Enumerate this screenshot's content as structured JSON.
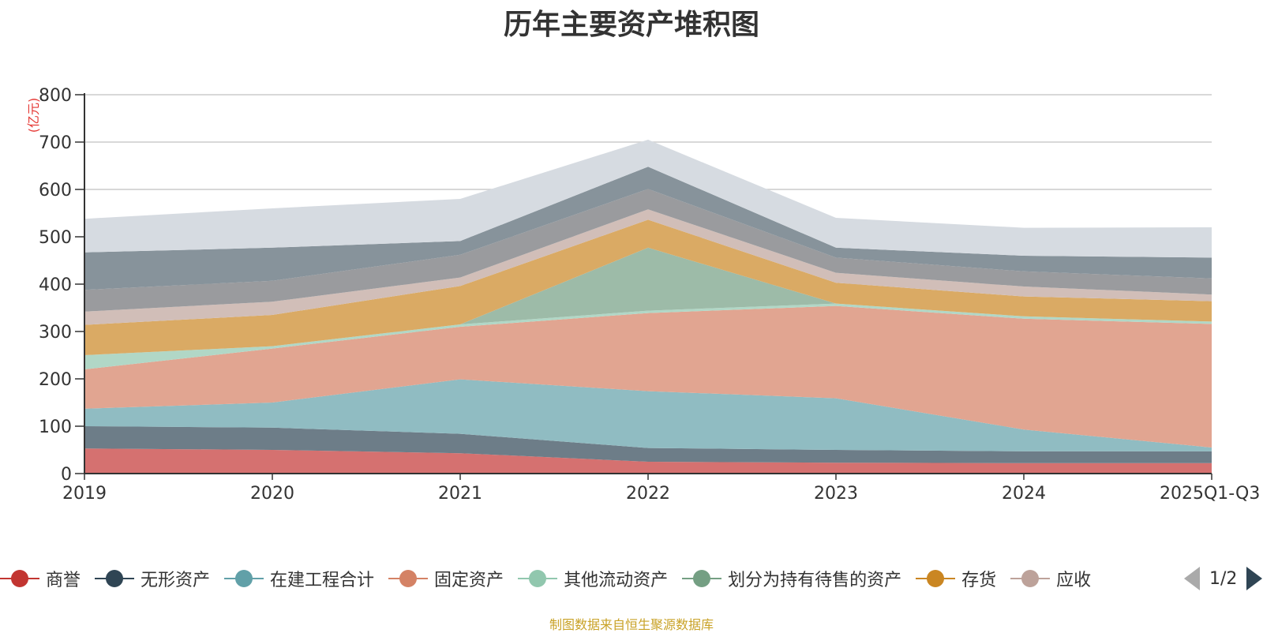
{
  "title": "历年主要资产堆积图",
  "unit_label": "(亿元)",
  "source_note": "制图数据来自恒生聚源数据库",
  "legend_pager": {
    "text": "1/2"
  },
  "chart_data": {
    "type": "area",
    "stacked": true,
    "title": "历年主要资产堆积图",
    "ylabel": "(亿元)",
    "ylim": [
      0,
      800
    ],
    "yticks": [
      0,
      100,
      200,
      300,
      400,
      500,
      600,
      700,
      800
    ],
    "grid": true,
    "categories": [
      "2019",
      "2020",
      "2021",
      "2022",
      "2023",
      "2024",
      "2025Q1-Q3"
    ],
    "series": [
      {
        "name": "商誉",
        "color": "#c23531",
        "fill": "#d57170",
        "values": [
          53,
          50,
          43,
          25,
          23,
          22,
          22
        ]
      },
      {
        "name": "无形资产",
        "color": "#2f4554",
        "fill": "#6d7d88",
        "values": [
          47,
          47,
          41,
          29,
          27,
          25,
          25
        ]
      },
      {
        "name": "在建工程合计",
        "color": "#61a0a8",
        "fill": "#90bcc2",
        "values": [
          37,
          53,
          115,
          120,
          109,
          46,
          8
        ]
      },
      {
        "name": "固定资产",
        "color": "#d48265",
        "fill": "#e1a591",
        "values": [
          83,
          114,
          111,
          165,
          195,
          234,
          261
        ]
      },
      {
        "name": "其他流动资产",
        "color": "#91c7ae",
        "fill": "#b1d7c6",
        "values": [
          30,
          5,
          5,
          5,
          5,
          5,
          5
        ]
      },
      {
        "name": "划分为持有待售的资产",
        "color": "#749f83",
        "fill": "#9dbba8",
        "values": [
          0,
          0,
          0,
          133,
          0,
          0,
          0
        ]
      },
      {
        "name": "存货",
        "color": "#ca8622",
        "fill": "#daaa64",
        "values": [
          64,
          66,
          81,
          59,
          44,
          42,
          43
        ]
      },
      {
        "name": "应收",
        "color": "#bda29a",
        "fill": "#d1beb8",
        "values": [
          28,
          28,
          18,
          22,
          21,
          21,
          14
        ]
      },
      {
        "name": "",
        "color": "#6e7074",
        "fill": "#9a9b9e",
        "values": [
          46,
          44,
          48,
          43,
          32,
          32,
          34
        ]
      },
      {
        "name": "",
        "color": "#546570",
        "fill": "#87939b",
        "values": [
          79,
          70,
          29,
          47,
          21,
          33,
          44
        ]
      },
      {
        "name": "",
        "color": "#c4ccd3",
        "fill": "#d6dbe1",
        "values": [
          71,
          83,
          89,
          57,
          63,
          59,
          64
        ]
      }
    ]
  }
}
